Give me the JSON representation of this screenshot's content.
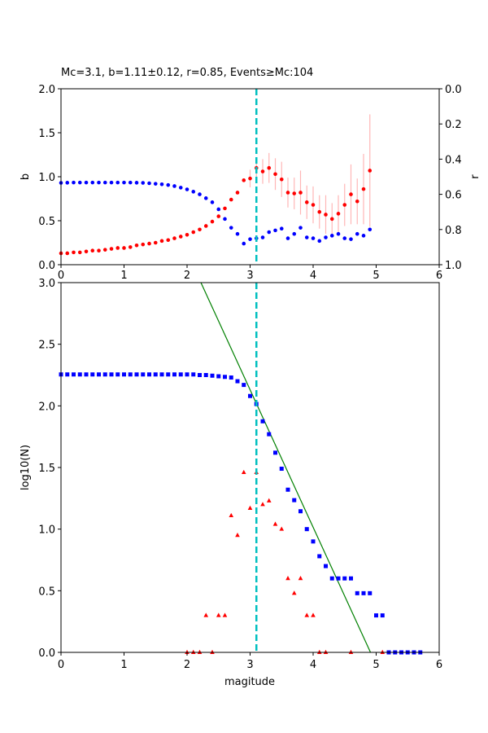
{
  "chart_data": [
    {
      "type": "scatter",
      "title": "Mc=3.1, b=1.11±0.12, r=0.85, Events≥Mc:104",
      "xlabel": "",
      "ylabel": "b",
      "ylabel_right": "r",
      "xlim": [
        0,
        6
      ],
      "ylim": [
        0,
        2.0
      ],
      "ylim_right": [
        1.0,
        0.0
      ],
      "x_ticks": [
        "0",
        "1",
        "2",
        "3",
        "4",
        "5",
        "6"
      ],
      "y_ticks": [
        "0.0",
        "0.5",
        "1.0",
        "1.5",
        "2.0"
      ],
      "y_ticks_right": [
        "1.0",
        "0.8",
        "0.6",
        "0.4",
        "0.2",
        "0.0"
      ],
      "grid": false,
      "mc_line": {
        "x": 3.1,
        "color": "#00bfbf"
      },
      "series": [
        {
          "axis": "left",
          "color": "#ff0000",
          "errorbar_color": "#ffb6b6",
          "x": [
            0.0,
            0.1,
            0.2,
            0.3,
            0.4,
            0.5,
            0.6,
            0.7,
            0.8,
            0.9,
            1.0,
            1.1,
            1.2,
            1.3,
            1.4,
            1.5,
            1.6,
            1.7,
            1.8,
            1.9,
            2.0,
            2.1,
            2.2,
            2.3,
            2.4,
            2.5,
            2.6,
            2.7,
            2.8,
            2.9,
            3.0,
            3.1,
            3.2,
            3.3,
            3.4,
            3.5,
            3.6,
            3.7,
            3.8,
            3.9,
            4.0,
            4.1,
            4.2,
            4.3,
            4.4,
            4.5,
            4.6,
            4.7,
            4.8,
            4.9
          ],
          "values": [
            0.13,
            0.13,
            0.14,
            0.14,
            0.15,
            0.16,
            0.16,
            0.17,
            0.18,
            0.19,
            0.19,
            0.2,
            0.22,
            0.23,
            0.24,
            0.25,
            0.27,
            0.28,
            0.3,
            0.32,
            0.34,
            0.37,
            0.4,
            0.44,
            0.49,
            0.55,
            0.64,
            0.74,
            0.82,
            0.96,
            0.98,
            1.1,
            1.06,
            1.1,
            1.03,
            0.97,
            0.82,
            0.81,
            0.82,
            0.71,
            0.68,
            0.6,
            0.57,
            0.52,
            0.58,
            0.68,
            0.8,
            0.72,
            0.86,
            1.07
          ],
          "errors": [
            0,
            0,
            0,
            0,
            0,
            0,
            0,
            0,
            0,
            0,
            0,
            0,
            0,
            0,
            0,
            0,
            0,
            0,
            0,
            0,
            0,
            0,
            0,
            0,
            0,
            0,
            0,
            0,
            0,
            0,
            0.1,
            0.12,
            0.14,
            0.17,
            0.18,
            0.2,
            0.17,
            0.18,
            0.25,
            0.19,
            0.21,
            0.19,
            0.22,
            0.18,
            0.21,
            0.24,
            0.34,
            0.26,
            0.4,
            0.64
          ]
        },
        {
          "axis": "right",
          "color": "#0000ff",
          "x": [
            0.0,
            0.1,
            0.2,
            0.3,
            0.4,
            0.5,
            0.6,
            0.7,
            0.8,
            0.9,
            1.0,
            1.1,
            1.2,
            1.3,
            1.4,
            1.5,
            1.6,
            1.7,
            1.8,
            1.9,
            2.0,
            2.1,
            2.2,
            2.3,
            2.4,
            2.5,
            2.6,
            2.7,
            2.8,
            2.9,
            3.0,
            3.1,
            3.2,
            3.3,
            3.4,
            3.5,
            3.6,
            3.7,
            3.8,
            3.9,
            4.0,
            4.1,
            4.2,
            4.3,
            4.4,
            4.5,
            4.6,
            4.7,
            4.8,
            4.9
          ],
          "values": [
            0.535,
            0.534,
            0.533,
            0.533,
            0.533,
            0.533,
            0.533,
            0.533,
            0.533,
            0.533,
            0.533,
            0.533,
            0.534,
            0.535,
            0.537,
            0.54,
            0.543,
            0.547,
            0.553,
            0.562,
            0.572,
            0.585,
            0.6,
            0.622,
            0.645,
            0.685,
            0.74,
            0.79,
            0.825,
            0.88,
            0.855,
            0.85,
            0.845,
            0.815,
            0.805,
            0.795,
            0.85,
            0.825,
            0.79,
            0.845,
            0.85,
            0.865,
            0.845,
            0.835,
            0.825,
            0.85,
            0.855,
            0.825,
            0.835,
            0.8
          ]
        }
      ]
    },
    {
      "type": "scatter",
      "title": "",
      "xlabel": "magitude",
      "ylabel": "log10(N)",
      "xlim": [
        0,
        6
      ],
      "ylim": [
        0,
        3.0
      ],
      "x_ticks": [
        "0",
        "1",
        "2",
        "3",
        "4",
        "5",
        "6"
      ],
      "y_ticks": [
        "0.0",
        "0.5",
        "1.0",
        "1.5",
        "2.0",
        "2.5",
        "3.0"
      ],
      "grid": false,
      "mc_line": {
        "x": 3.1,
        "color": "#00bfbf"
      },
      "fit_line": {
        "color": "#008000",
        "x1": 2.22,
        "y1": 3.0,
        "x2": 4.91,
        "y2": 0.0
      },
      "series": [
        {
          "marker": "square",
          "color": "#0000ff",
          "x": [
            0.0,
            0.1,
            0.2,
            0.3,
            0.4,
            0.5,
            0.6,
            0.7,
            0.8,
            0.9,
            1.0,
            1.1,
            1.2,
            1.3,
            1.4,
            1.5,
            1.6,
            1.7,
            1.8,
            1.9,
            2.0,
            2.1,
            2.2,
            2.3,
            2.4,
            2.5,
            2.6,
            2.7,
            2.8,
            2.9,
            3.0,
            3.1,
            3.2,
            3.3,
            3.4,
            3.5,
            3.6,
            3.7,
            3.8,
            3.9,
            4.0,
            4.1,
            4.2,
            4.3,
            4.4,
            4.5,
            4.6,
            4.7,
            4.8,
            4.9,
            5.0,
            5.1,
            5.2,
            5.3,
            5.4,
            5.5,
            5.6,
            5.7
          ],
          "values": [
            2.255,
            2.255,
            2.255,
            2.255,
            2.255,
            2.255,
            2.255,
            2.255,
            2.255,
            2.255,
            2.255,
            2.255,
            2.255,
            2.255,
            2.255,
            2.255,
            2.255,
            2.255,
            2.255,
            2.255,
            2.255,
            2.255,
            2.25,
            2.25,
            2.245,
            2.24,
            2.235,
            2.23,
            2.2,
            2.17,
            2.08,
            2.015,
            1.875,
            1.77,
            1.62,
            1.49,
            1.32,
            1.235,
            1.145,
            1.0,
            0.9,
            0.78,
            0.7,
            0.6,
            0.6,
            0.6,
            0.6,
            0.48,
            0.48,
            0.48,
            0.3,
            0.3,
            0.0,
            0.0,
            0.0,
            0.0,
            0.0,
            0.0
          ]
        },
        {
          "marker": "triangle",
          "color": "#ff0000",
          "x": [
            2.0,
            2.1,
            2.2,
            2.3,
            2.4,
            2.5,
            2.6,
            2.7,
            2.8,
            2.9,
            3.0,
            3.1,
            3.2,
            3.3,
            3.4,
            3.5,
            3.6,
            3.7,
            3.8,
            3.9,
            4.0,
            4.1,
            4.2,
            4.6,
            5.1
          ],
          "values": [
            0.0,
            0.0,
            0.0,
            0.3,
            0.0,
            0.3,
            0.3,
            1.11,
            0.95,
            1.46,
            1.17,
            1.46,
            1.2,
            1.23,
            1.04,
            1.0,
            0.6,
            0.48,
            0.6,
            0.3,
            0.3,
            0.0,
            0.0,
            0.0,
            0.0
          ]
        }
      ]
    }
  ]
}
